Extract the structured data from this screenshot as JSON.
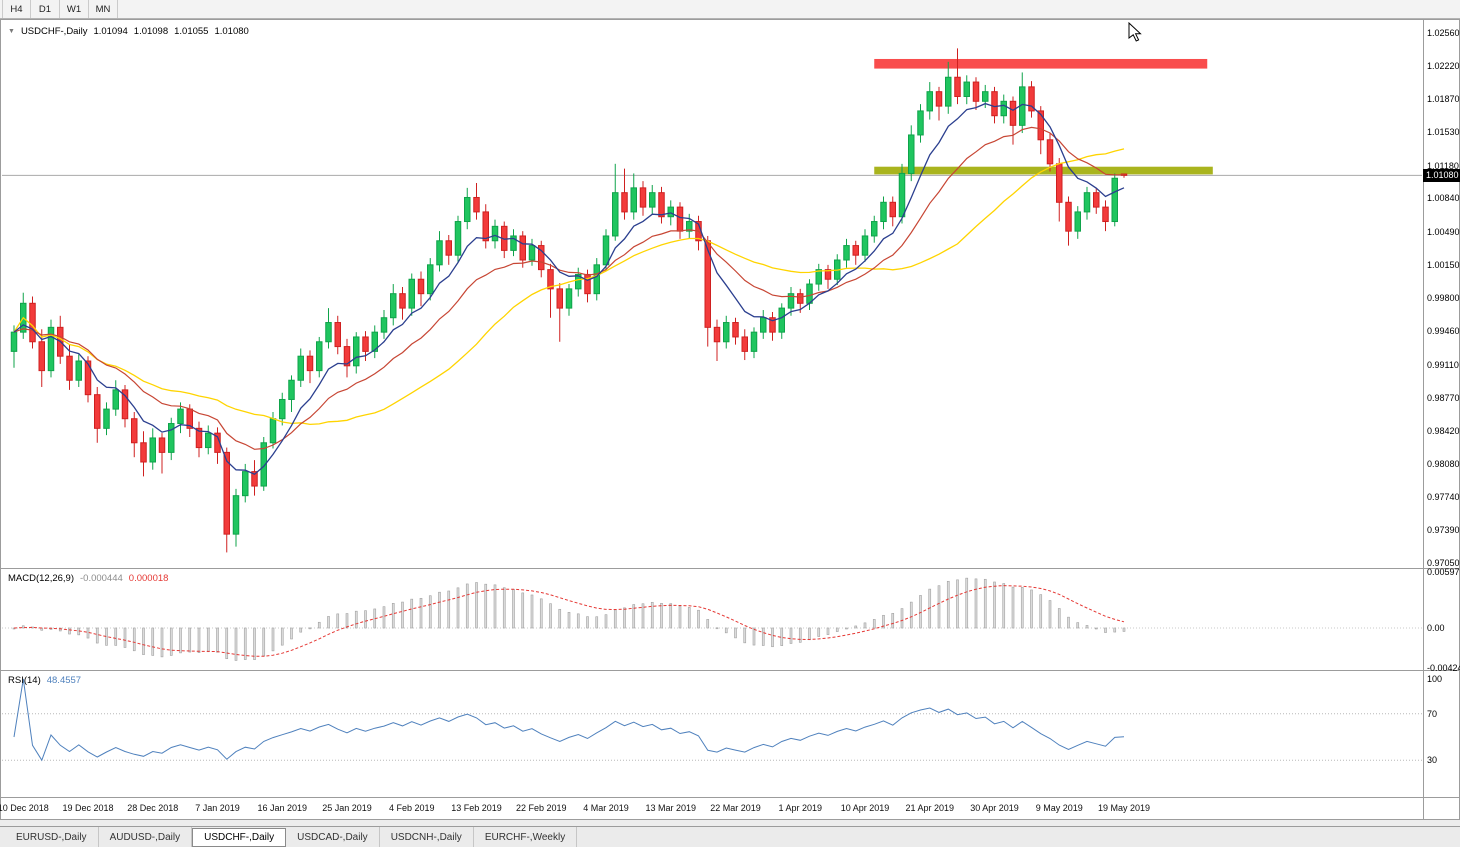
{
  "toolbar": {
    "timeframes": [
      {
        "label": "H4"
      },
      {
        "label": "D1"
      },
      {
        "label": "W1"
      },
      {
        "label": "MN"
      }
    ]
  },
  "chart_header": {
    "collapse_icon": "▼",
    "symbol": "USDCHF-,Daily",
    "open": "1.01094",
    "high": "1.01098",
    "low": "1.01055",
    "close": "1.01080"
  },
  "price_axis": {
    "labels": [
      "1.02560",
      "1.02220",
      "1.01870",
      "1.01530",
      "1.01180",
      "1.00840",
      "1.00490",
      "1.00150",
      "0.99800",
      "0.99460",
      "0.99110",
      "0.98770",
      "0.98420",
      "0.98080",
      "0.97740",
      "0.97390",
      "0.97050"
    ],
    "current_price": "1.01080"
  },
  "time_axis": {
    "labels": [
      {
        "index": 1,
        "label": "10 Dec 2018"
      },
      {
        "index": 8,
        "label": "19 Dec 2018"
      },
      {
        "index": 15,
        "label": "28 Dec 2018"
      },
      {
        "index": 22,
        "label": "7 Jan 2019"
      },
      {
        "index": 29,
        "label": "16 Jan 2019"
      },
      {
        "index": 36,
        "label": "25 Jan 2019"
      },
      {
        "index": 43,
        "label": "4 Feb 2019"
      },
      {
        "index": 50,
        "label": "13 Feb 2019"
      },
      {
        "index": 57,
        "label": "22 Feb 2019"
      },
      {
        "index": 64,
        "label": "4 Mar 2019"
      },
      {
        "index": 71,
        "label": "13 Mar 2019"
      },
      {
        "index": 78,
        "label": "22 Mar 2019"
      },
      {
        "index": 85,
        "label": "1 Apr 2019"
      },
      {
        "index": 92,
        "label": "10 Apr 2019"
      },
      {
        "index": 99,
        "label": "21 Apr 2019"
      },
      {
        "index": 106,
        "label": "30 Apr 2019"
      },
      {
        "index": 113,
        "label": "9 May 2019"
      },
      {
        "index": 120,
        "label": "19 May 2019"
      }
    ]
  },
  "macd_panel": {
    "title": "MACD(12,26,9)",
    "main_value": "-0.000444",
    "signal_value": "0.000018",
    "axis_labels": [
      "0.00597",
      "0.00",
      "-0.00424"
    ],
    "params": {
      "fast": 12,
      "slow": 26,
      "signal": 9
    }
  },
  "rsi_panel": {
    "title": "RSI(14)",
    "value": "48.4557",
    "axis_labels": [
      "100",
      "70",
      "30"
    ],
    "period": 14,
    "levels": [
      70,
      30
    ]
  },
  "tabs": [
    {
      "label": "EURUSD-,Daily",
      "active": false
    },
    {
      "label": "AUDUSD-,Daily",
      "active": false
    },
    {
      "label": "USDCHF-,Daily",
      "active": true
    },
    {
      "label": "USDCAD-,Daily",
      "active": false
    },
    {
      "label": "USDCNH-,Daily",
      "active": false
    },
    {
      "label": "EURCHF-,Weekly",
      "active": false
    }
  ],
  "colors": {
    "background": "#ffffff",
    "bull": "#1fc55f",
    "bull_border": "#0fa34a",
    "bear": "#f23b3b",
    "bear_border": "#cf2020",
    "ma_fast": "#2b3f8f",
    "ma_mid": "#c74634",
    "ma_slow": "#ffd400",
    "macd_hist_fill": "#dcdcdc",
    "macd_hist_stroke": "#a0a0a0",
    "macd_signal": "#e53935",
    "rsi_line": "#4f81bd",
    "resistance": "#f94c4c",
    "support": "#a9b41e",
    "price_line": "#a9a9a9",
    "price_tag_bg": "#000000"
  },
  "chart_data": {
    "type": "candlestick",
    "symbol": "USDCHF",
    "timeframe": "Daily",
    "current_price": 1.0108,
    "price_range": [
      0.9705,
      1.0256
    ],
    "candles": [
      [
        0.9925,
        0.9952,
        0.9908,
        0.9945
      ],
      [
        0.9945,
        0.9986,
        0.9938,
        0.9975
      ],
      [
        0.9975,
        0.9982,
        0.9928,
        0.9935
      ],
      [
        0.9935,
        0.9948,
        0.9888,
        0.9905
      ],
      [
        0.9905,
        0.9958,
        0.9898,
        0.995
      ],
      [
        0.995,
        0.9962,
        0.9912,
        0.992
      ],
      [
        0.992,
        0.9932,
        0.9885,
        0.9895
      ],
      [
        0.9895,
        0.9922,
        0.9888,
        0.9915
      ],
      [
        0.9915,
        0.992,
        0.9872,
        0.988
      ],
      [
        0.988,
        0.9888,
        0.983,
        0.9845
      ],
      [
        0.9845,
        0.9872,
        0.9838,
        0.9865
      ],
      [
        0.9865,
        0.9895,
        0.9858,
        0.9885
      ],
      [
        0.9885,
        0.989,
        0.9846,
        0.9855
      ],
      [
        0.9855,
        0.9862,
        0.9815,
        0.983
      ],
      [
        0.983,
        0.9842,
        0.9795,
        0.981
      ],
      [
        0.981,
        0.9845,
        0.9802,
        0.9835
      ],
      [
        0.9835,
        0.984,
        0.9798,
        0.982
      ],
      [
        0.982,
        0.9856,
        0.9812,
        0.985
      ],
      [
        0.985,
        0.9872,
        0.984,
        0.9865
      ],
      [
        0.9865,
        0.987,
        0.9836,
        0.9845
      ],
      [
        0.9845,
        0.9852,
        0.9815,
        0.9825
      ],
      [
        0.9825,
        0.9848,
        0.9818,
        0.984
      ],
      [
        0.984,
        0.9846,
        0.9808,
        0.982
      ],
      [
        0.982,
        0.9825,
        0.9716,
        0.9735
      ],
      [
        0.9735,
        0.9782,
        0.9722,
        0.9775
      ],
      [
        0.9775,
        0.9808,
        0.9768,
        0.98
      ],
      [
        0.98,
        0.9812,
        0.9775,
        0.9785
      ],
      [
        0.9785,
        0.9836,
        0.978,
        0.983
      ],
      [
        0.983,
        0.9862,
        0.9824,
        0.9855
      ],
      [
        0.9855,
        0.9882,
        0.9848,
        0.9875
      ],
      [
        0.9875,
        0.99,
        0.9862,
        0.9895
      ],
      [
        0.9895,
        0.9928,
        0.9888,
        0.992
      ],
      [
        0.992,
        0.9926,
        0.9892,
        0.9905
      ],
      [
        0.9905,
        0.994,
        0.9898,
        0.9935
      ],
      [
        0.9935,
        0.997,
        0.9928,
        0.9955
      ],
      [
        0.9955,
        0.9962,
        0.9922,
        0.993
      ],
      [
        0.993,
        0.9938,
        0.9898,
        0.991
      ],
      [
        0.991,
        0.9945,
        0.9902,
        0.994
      ],
      [
        0.994,
        0.9946,
        0.9915,
        0.9925
      ],
      [
        0.9925,
        0.9952,
        0.9918,
        0.9945
      ],
      [
        0.9945,
        0.9968,
        0.9938,
        0.996
      ],
      [
        0.996,
        0.9995,
        0.9952,
        0.9985
      ],
      [
        0.9985,
        0.9992,
        0.9958,
        0.997
      ],
      [
        0.997,
        1.0006,
        0.9962,
        1.0
      ],
      [
        1.0,
        1.0008,
        0.9972,
        0.9985
      ],
      [
        0.9985,
        1.0022,
        0.9978,
        1.0015
      ],
      [
        1.0015,
        1.005,
        1.0008,
        1.004
      ],
      [
        1.004,
        1.0046,
        1.0015,
        1.0025
      ],
      [
        1.0025,
        1.0066,
        1.0018,
        1.006
      ],
      [
        1.006,
        1.0095,
        1.0052,
        1.0085
      ],
      [
        1.0085,
        1.01,
        1.0062,
        1.007
      ],
      [
        1.007,
        1.0078,
        1.0032,
        1.004
      ],
      [
        1.004,
        1.0062,
        1.0032,
        1.0055
      ],
      [
        1.0055,
        1.006,
        1.0022,
        1.003
      ],
      [
        1.003,
        1.0052,
        1.0024,
        1.0045
      ],
      [
        1.0045,
        1.005,
        1.0012,
        1.002
      ],
      [
        1.002,
        1.0042,
        1.0014,
        1.0035
      ],
      [
        1.0035,
        1.004,
        1.0002,
        1.001
      ],
      [
        1.001,
        1.0016,
        0.996,
        0.999
      ],
      [
        0.999,
        0.9996,
        0.9935,
        0.997
      ],
      [
        0.997,
        0.9995,
        0.9962,
        0.999
      ],
      [
        0.999,
        1.0012,
        0.9982,
        1.0005
      ],
      [
        1.0005,
        1.001,
        0.9976,
        0.9985
      ],
      [
        0.9985,
        1.0022,
        0.9978,
        1.0015
      ],
      [
        1.0015,
        1.0052,
        1.0008,
        1.0045
      ],
      [
        1.0045,
        1.012,
        1.004,
        1.009
      ],
      [
        1.009,
        1.0115,
        1.0062,
        1.007
      ],
      [
        1.007,
        1.011,
        1.0062,
        1.0095
      ],
      [
        1.0095,
        1.0102,
        1.0066,
        1.0075
      ],
      [
        1.0075,
        1.0098,
        1.0068,
        1.009
      ],
      [
        1.009,
        1.0096,
        1.0058,
        1.0065
      ],
      [
        1.0065,
        1.0082,
        1.0056,
        1.0075
      ],
      [
        1.0075,
        1.008,
        1.0042,
        1.005
      ],
      [
        1.005,
        1.0068,
        1.0042,
        1.006
      ],
      [
        1.006,
        1.0066,
        1.003,
        1.004
      ],
      [
        1.004,
        1.0045,
        0.993,
        0.995
      ],
      [
        0.995,
        0.9958,
        0.9915,
        0.9935
      ],
      [
        0.9935,
        0.9962,
        0.9928,
        0.9955
      ],
      [
        0.9955,
        0.996,
        0.9932,
        0.994
      ],
      [
        0.994,
        0.9948,
        0.9916,
        0.9925
      ],
      [
        0.9925,
        0.995,
        0.9918,
        0.9945
      ],
      [
        0.9945,
        0.9968,
        0.9938,
        0.996
      ],
      [
        0.996,
        0.9966,
        0.9936,
        0.9945
      ],
      [
        0.9945,
        0.9975,
        0.9938,
        0.997
      ],
      [
        0.997,
        0.9992,
        0.9962,
        0.9985
      ],
      [
        0.9985,
        0.999,
        0.9965,
        0.9975
      ],
      [
        0.9975,
        1.0,
        0.9968,
        0.9995
      ],
      [
        0.9995,
        1.0016,
        0.9988,
        1.001
      ],
      [
        1.001,
        1.0015,
        0.999,
        1.0
      ],
      [
        1.0,
        1.0026,
        0.9994,
        1.002
      ],
      [
        1.002,
        1.0042,
        1.0012,
        1.0035
      ],
      [
        1.0035,
        1.004,
        1.0015,
        1.0025
      ],
      [
        1.0025,
        1.0052,
        1.0018,
        1.0045
      ],
      [
        1.0045,
        1.0066,
        1.0038,
        1.006
      ],
      [
        1.006,
        1.0086,
        1.0052,
        1.008
      ],
      [
        1.008,
        1.0086,
        1.0055,
        1.0065
      ],
      [
        1.0065,
        1.012,
        1.0058,
        1.011
      ],
      [
        1.011,
        1.016,
        1.0102,
        1.015
      ],
      [
        1.015,
        1.0182,
        1.0142,
        1.0175
      ],
      [
        1.0175,
        1.0205,
        1.0166,
        1.0195
      ],
      [
        1.0195,
        1.02,
        1.0165,
        1.018
      ],
      [
        1.018,
        1.0226,
        1.0172,
        1.021
      ],
      [
        1.021,
        1.024,
        1.0182,
        1.019
      ],
      [
        1.019,
        1.0212,
        1.0182,
        1.0205
      ],
      [
        1.0205,
        1.021,
        1.0176,
        1.0185
      ],
      [
        1.0185,
        1.0202,
        1.0178,
        1.0195
      ],
      [
        1.0195,
        1.02,
        1.0162,
        1.017
      ],
      [
        1.017,
        1.0192,
        1.0162,
        1.0185
      ],
      [
        1.0185,
        1.019,
        1.014,
        1.016
      ],
      [
        1.016,
        1.0215,
        1.0152,
        1.02
      ],
      [
        1.02,
        1.0206,
        1.0168,
        1.0175
      ],
      [
        1.0175,
        1.018,
        1.013,
        1.0145
      ],
      [
        1.0145,
        1.0152,
        1.0112,
        1.012
      ],
      [
        1.012,
        1.0126,
        1.006,
        1.008
      ],
      [
        1.008,
        1.0086,
        1.0035,
        1.005
      ],
      [
        1.005,
        1.0076,
        1.0042,
        1.007
      ],
      [
        1.007,
        1.0096,
        1.0062,
        1.009
      ],
      [
        1.009,
        1.0095,
        1.0068,
        1.0075
      ],
      [
        1.0075,
        1.0082,
        1.005,
        1.006
      ],
      [
        1.006,
        1.011,
        1.0055,
        1.0105
      ],
      [
        1.01094,
        1.01098,
        1.01055,
        1.0108
      ]
    ],
    "annotations": [
      {
        "name": "resistance-zone",
        "price_top": 1.0229,
        "price_bottom": 1.0219,
        "from_bar": 93,
        "to_bar": 129,
        "color_key": "resistance"
      },
      {
        "name": "support-zone",
        "price_top": 1.0117,
        "price_bottom": 1.0109,
        "from_bar": 93,
        "to_bar": 129.6,
        "color_key": "support"
      }
    ]
  }
}
